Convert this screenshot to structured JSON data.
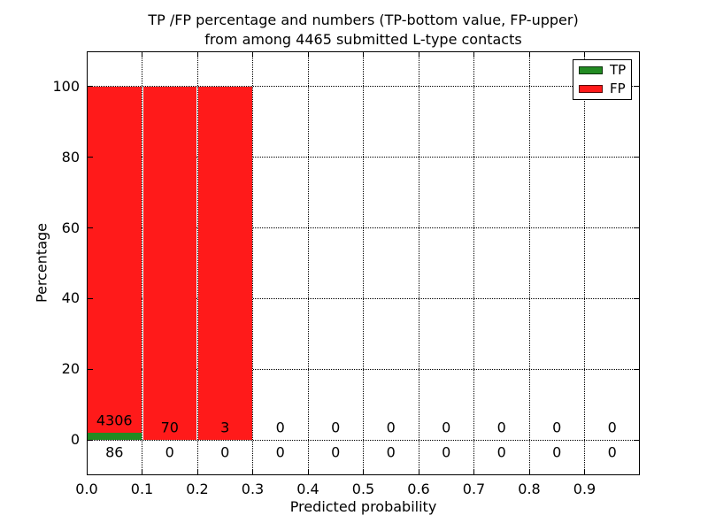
{
  "chart_data": {
    "type": "bar",
    "title_line1": "TP /FP percentage and numbers (TP-bottom value, FP-upper)",
    "title_line2": "from among 4465 submitted L-type contacts",
    "total_submitted_contacts": 4465,
    "xlabel": "Predicted probability",
    "ylabel": "Percentage",
    "xlim": [
      0,
      1.0
    ],
    "ylim": [
      -10,
      110
    ],
    "grid": "dotted",
    "legend_position": "upper right",
    "x_ticks": [
      "0.0",
      "0.1",
      "0.2",
      "0.3",
      "0.4",
      "0.5",
      "0.6",
      "0.7",
      "0.8",
      "0.9"
    ],
    "y_ticks": [
      "0",
      "20",
      "40",
      "60",
      "80",
      "100"
    ],
    "legend": [
      {
        "label": "TP",
        "color": "#228b22"
      },
      {
        "label": "FP",
        "color": "#ff1a1a"
      }
    ],
    "colors": {
      "tp": "#228b22",
      "fp": "#ff1a1a",
      "grid": "#000000",
      "background": "#ffffff"
    },
    "bins": [
      {
        "x0": 0.0,
        "x1": 0.1,
        "tp_count": 86,
        "fp_count": 4306,
        "tp_pct": 1.96,
        "fp_pct": 98.04
      },
      {
        "x0": 0.1,
        "x1": 0.2,
        "tp_count": 0,
        "fp_count": 70,
        "tp_pct": 0,
        "fp_pct": 100
      },
      {
        "x0": 0.2,
        "x1": 0.3,
        "tp_count": 0,
        "fp_count": 3,
        "tp_pct": 0,
        "fp_pct": 100
      },
      {
        "x0": 0.3,
        "x1": 0.4,
        "tp_count": 0,
        "fp_count": 0,
        "tp_pct": 0,
        "fp_pct": 0
      },
      {
        "x0": 0.4,
        "x1": 0.5,
        "tp_count": 0,
        "fp_count": 0,
        "tp_pct": 0,
        "fp_pct": 0
      },
      {
        "x0": 0.5,
        "x1": 0.6,
        "tp_count": 0,
        "fp_count": 0,
        "tp_pct": 0,
        "fp_pct": 0
      },
      {
        "x0": 0.6,
        "x1": 0.7,
        "tp_count": 0,
        "fp_count": 0,
        "tp_pct": 0,
        "fp_pct": 0
      },
      {
        "x0": 0.7,
        "x1": 0.8,
        "tp_count": 0,
        "fp_count": 0,
        "tp_pct": 0,
        "fp_pct": 0
      },
      {
        "x0": 0.8,
        "x1": 0.9,
        "tp_count": 0,
        "fp_count": 0,
        "tp_pct": 0,
        "fp_pct": 0
      },
      {
        "x0": 0.9,
        "x1": 1.0,
        "tp_count": 0,
        "fp_count": 0,
        "tp_pct": 0,
        "fp_pct": 0
      }
    ]
  }
}
